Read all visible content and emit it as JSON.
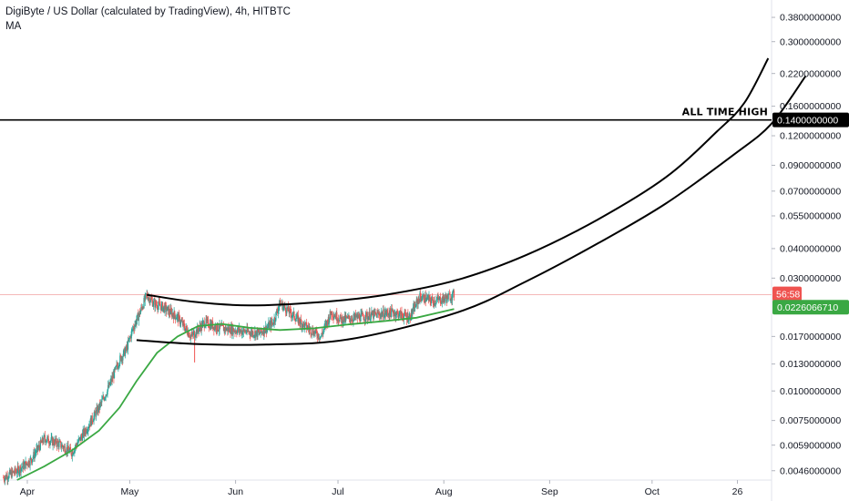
{
  "header": {
    "title": "DigiByte / US Dollar (calculated by TradingView), 4h, HITBTC",
    "indicator": "MA"
  },
  "chart_data": {
    "type": "candlestick",
    "symbol": "DigiByte / US Dollar",
    "timeframe": "4h",
    "exchange": "HITBTC",
    "scale": "log",
    "ylim": [
      0.0042,
      0.45
    ],
    "price_ticks": [
      "0.3800000000",
      "0.3000000000",
      "0.2200000000",
      "0.1600000000",
      "0.1200000000",
      "0.0900000000",
      "0.0700000000",
      "0.0550000000",
      "0.0400000000",
      "0.0300000000",
      "0.0170000000",
      "0.0130000000",
      "0.0100000000",
      "0.0075000000",
      "0.0059000000",
      "0.0046000000"
    ],
    "time_ticks": [
      "Apr",
      "May",
      "Jun",
      "Jul",
      "Aug",
      "Sep",
      "Oct",
      "26"
    ],
    "time_axis": {
      "start": "2019-03-24",
      "end": "2019-11-05"
    },
    "price_series": [
      {
        "t": "2019-03-25",
        "p": 0.0043
      },
      {
        "t": "2019-03-29",
        "p": 0.0046
      },
      {
        "t": "2019-04-02",
        "p": 0.0051
      },
      {
        "t": "2019-04-06",
        "p": 0.0063
      },
      {
        "t": "2019-04-10",
        "p": 0.006
      },
      {
        "t": "2019-04-14",
        "p": 0.0055
      },
      {
        "t": "2019-04-18",
        "p": 0.0068
      },
      {
        "t": "2019-04-22",
        "p": 0.0085
      },
      {
        "t": "2019-04-25",
        "p": 0.0105
      },
      {
        "t": "2019-04-28",
        "p": 0.0135
      },
      {
        "t": "2019-04-30",
        "p": 0.015
      },
      {
        "t": "2019-05-02",
        "p": 0.0185
      },
      {
        "t": "2019-05-04",
        "p": 0.0215
      },
      {
        "t": "2019-05-06",
        "p": 0.0255
      },
      {
        "t": "2019-05-08",
        "p": 0.0235
      },
      {
        "t": "2019-05-11",
        "p": 0.0225
      },
      {
        "t": "2019-05-15",
        "p": 0.0205
      },
      {
        "t": "2019-05-19",
        "p": 0.017
      },
      {
        "t": "2019-05-23",
        "p": 0.0195
      },
      {
        "t": "2019-05-27",
        "p": 0.0185
      },
      {
        "t": "2019-06-02",
        "p": 0.018
      },
      {
        "t": "2019-06-08",
        "p": 0.0175
      },
      {
        "t": "2019-06-12",
        "p": 0.0195
      },
      {
        "t": "2019-06-14",
        "p": 0.0235
      },
      {
        "t": "2019-06-17",
        "p": 0.0215
      },
      {
        "t": "2019-06-21",
        "p": 0.019
      },
      {
        "t": "2019-06-26",
        "p": 0.017
      },
      {
        "t": "2019-06-29",
        "p": 0.0215
      },
      {
        "t": "2019-07-02",
        "p": 0.02
      },
      {
        "t": "2019-07-07",
        "p": 0.0205
      },
      {
        "t": "2019-07-12",
        "p": 0.021
      },
      {
        "t": "2019-07-17",
        "p": 0.0215
      },
      {
        "t": "2019-07-22",
        "p": 0.0205
      },
      {
        "t": "2019-07-25",
        "p": 0.025
      },
      {
        "t": "2019-07-29",
        "p": 0.024
      },
      {
        "t": "2019-08-01",
        "p": 0.0245
      },
      {
        "t": "2019-08-04",
        "p": 0.0255
      }
    ],
    "ma_series": [
      {
        "t": "2019-03-29",
        "p": 0.0042
      },
      {
        "t": "2019-04-06",
        "p": 0.0048
      },
      {
        "t": "2019-04-14",
        "p": 0.0056
      },
      {
        "t": "2019-04-22",
        "p": 0.0068
      },
      {
        "t": "2019-04-28",
        "p": 0.0085
      },
      {
        "t": "2019-05-03",
        "p": 0.011
      },
      {
        "t": "2019-05-09",
        "p": 0.0145
      },
      {
        "t": "2019-05-15",
        "p": 0.017
      },
      {
        "t": "2019-05-21",
        "p": 0.0188
      },
      {
        "t": "2019-05-28",
        "p": 0.0192
      },
      {
        "t": "2019-06-05",
        "p": 0.0185
      },
      {
        "t": "2019-06-14",
        "p": 0.0181
      },
      {
        "t": "2019-06-24",
        "p": 0.0184
      },
      {
        "t": "2019-07-04",
        "p": 0.0191
      },
      {
        "t": "2019-07-14",
        "p": 0.0197
      },
      {
        "t": "2019-07-24",
        "p": 0.0204
      },
      {
        "t": "2019-08-04",
        "p": 0.0222
      }
    ],
    "current_price": "0.0226066710",
    "countdown": "56:58",
    "horizontal_level": {
      "price": 0.14,
      "label": "0.1400000000",
      "annotation": "ALL TIME HIGH"
    },
    "upper_curve": [
      {
        "t": "2019-05-06",
        "p": 0.0255
      },
      {
        "t": "2019-05-20",
        "p": 0.0238
      },
      {
        "t": "2019-06-05",
        "p": 0.023
      },
      {
        "t": "2019-06-25",
        "p": 0.0237
      },
      {
        "t": "2019-07-15",
        "p": 0.0255
      },
      {
        "t": "2019-08-05",
        "p": 0.0295
      },
      {
        "t": "2019-08-25",
        "p": 0.0375
      },
      {
        "t": "2019-09-15",
        "p": 0.053
      },
      {
        "t": "2019-10-05",
        "p": 0.08
      },
      {
        "t": "2019-10-20",
        "p": 0.125
      },
      {
        "t": "2019-10-28",
        "p": 0.165
      },
      {
        "t": "2019-11-04",
        "p": 0.255
      }
    ],
    "lower_curve": [
      {
        "t": "2019-05-03",
        "p": 0.0164
      },
      {
        "t": "2019-05-20",
        "p": 0.0158
      },
      {
        "t": "2019-06-10",
        "p": 0.0157
      },
      {
        "t": "2019-07-05",
        "p": 0.0166
      },
      {
        "t": "2019-08-05",
        "p": 0.0215
      },
      {
        "t": "2019-08-25",
        "p": 0.029
      },
      {
        "t": "2019-09-15",
        "p": 0.042
      },
      {
        "t": "2019-10-05",
        "p": 0.062
      },
      {
        "t": "2019-10-25",
        "p": 0.1
      },
      {
        "t": "2019-11-05",
        "p": 0.135
      },
      {
        "t": "2019-11-15",
        "p": 0.215
      }
    ],
    "colors": {
      "up": "#26a69a",
      "down": "#ef5350",
      "ma": "#3aa843",
      "curves": "#000000",
      "level_line": "#000000",
      "price_line": "#f0a0a0",
      "countdown_tag": "#ef5350",
      "price_tag": "#3aa843",
      "level_tag": "#000000"
    },
    "grid": false
  }
}
